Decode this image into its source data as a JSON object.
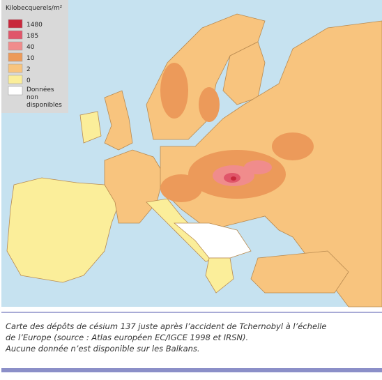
{
  "legend": {
    "title": "Kilobecquerels/m²",
    "items": [
      {
        "label": "1480",
        "color": "#c8283c"
      },
      {
        "label": "185",
        "color": "#e0566a"
      },
      {
        "label": "40",
        "color": "#f08c8c"
      },
      {
        "label": "10",
        "color": "#ec9a5a"
      },
      {
        "label": "2",
        "color": "#f8c47e"
      },
      {
        "label": "0",
        "color": "#fbee9a"
      },
      {
        "label": "Données non disponibles",
        "color": "#ffffff"
      }
    ]
  },
  "caption": {
    "lines": [
      "Carte des dépôts de césium 137 juste après l’accident de Tchernobyl à l’échelle",
      "de l’Europe (source : Atlas européen EC/IGCE 1998 et IRSN).",
      "Aucune donnée n’est disponible sur les Balkans."
    ]
  }
}
